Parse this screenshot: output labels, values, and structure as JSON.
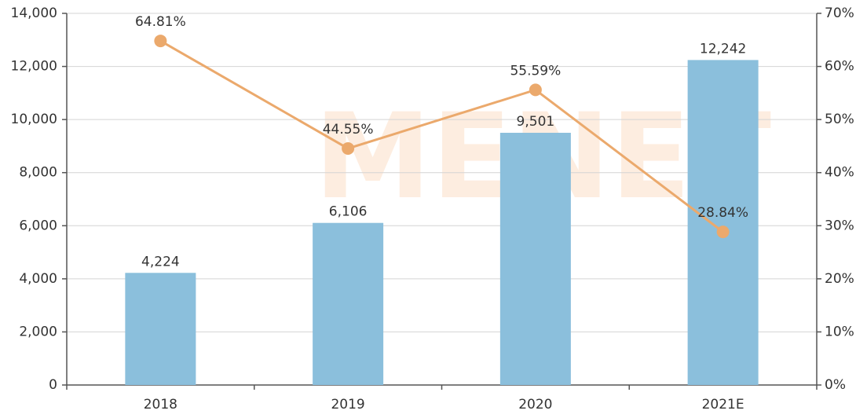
{
  "chart_data": {
    "type": "bar",
    "watermark": "MENET",
    "categories": [
      "2018",
      "2019",
      "2020",
      "2021E"
    ],
    "series": [
      {
        "color": "#8bbfdc",
        "values": [
          4224,
          6106,
          9501,
          12242
        ],
        "value_labels": [
          "4,224",
          "6,106",
          "9,501",
          "12,242"
        ]
      },
      {
        "type": "line",
        "axis": "y2",
        "color": "#eba96c",
        "values": [
          64.81,
          44.55,
          55.59,
          28.84
        ],
        "value_labels": [
          "64.81%",
          "44.55%",
          "55.59%",
          "28.84%"
        ]
      }
    ],
    "ylim": [
      0,
      14000
    ],
    "yticks": [
      0,
      {
        "value": 2000,
        "label": "2,000"
      },
      {
        "value": 4000,
        "label": "4,000"
      },
      {
        "value": 6000,
        "label": "6,000"
      },
      {
        "value": 8000,
        "label": "8,000"
      },
      {
        "value": 10000,
        "label": "10,000"
      },
      {
        "value": 12000,
        "label": "12,000"
      },
      {
        "value": 14000,
        "label": "14,000"
      }
    ],
    "y2lim": [
      0,
      70
    ],
    "y2ticks": [
      {
        "value": 0,
        "label": "0%"
      },
      {
        "value": 10,
        "label": "10%"
      },
      {
        "value": 20,
        "label": "20%"
      },
      {
        "value": 30,
        "label": "30%"
      },
      {
        "value": 40,
        "label": "40%"
      },
      {
        "value": 50,
        "label": "50%"
      },
      {
        "value": 60,
        "label": "60%"
      },
      {
        "value": 70,
        "label": "70%"
      }
    ],
    "grid": true
  }
}
